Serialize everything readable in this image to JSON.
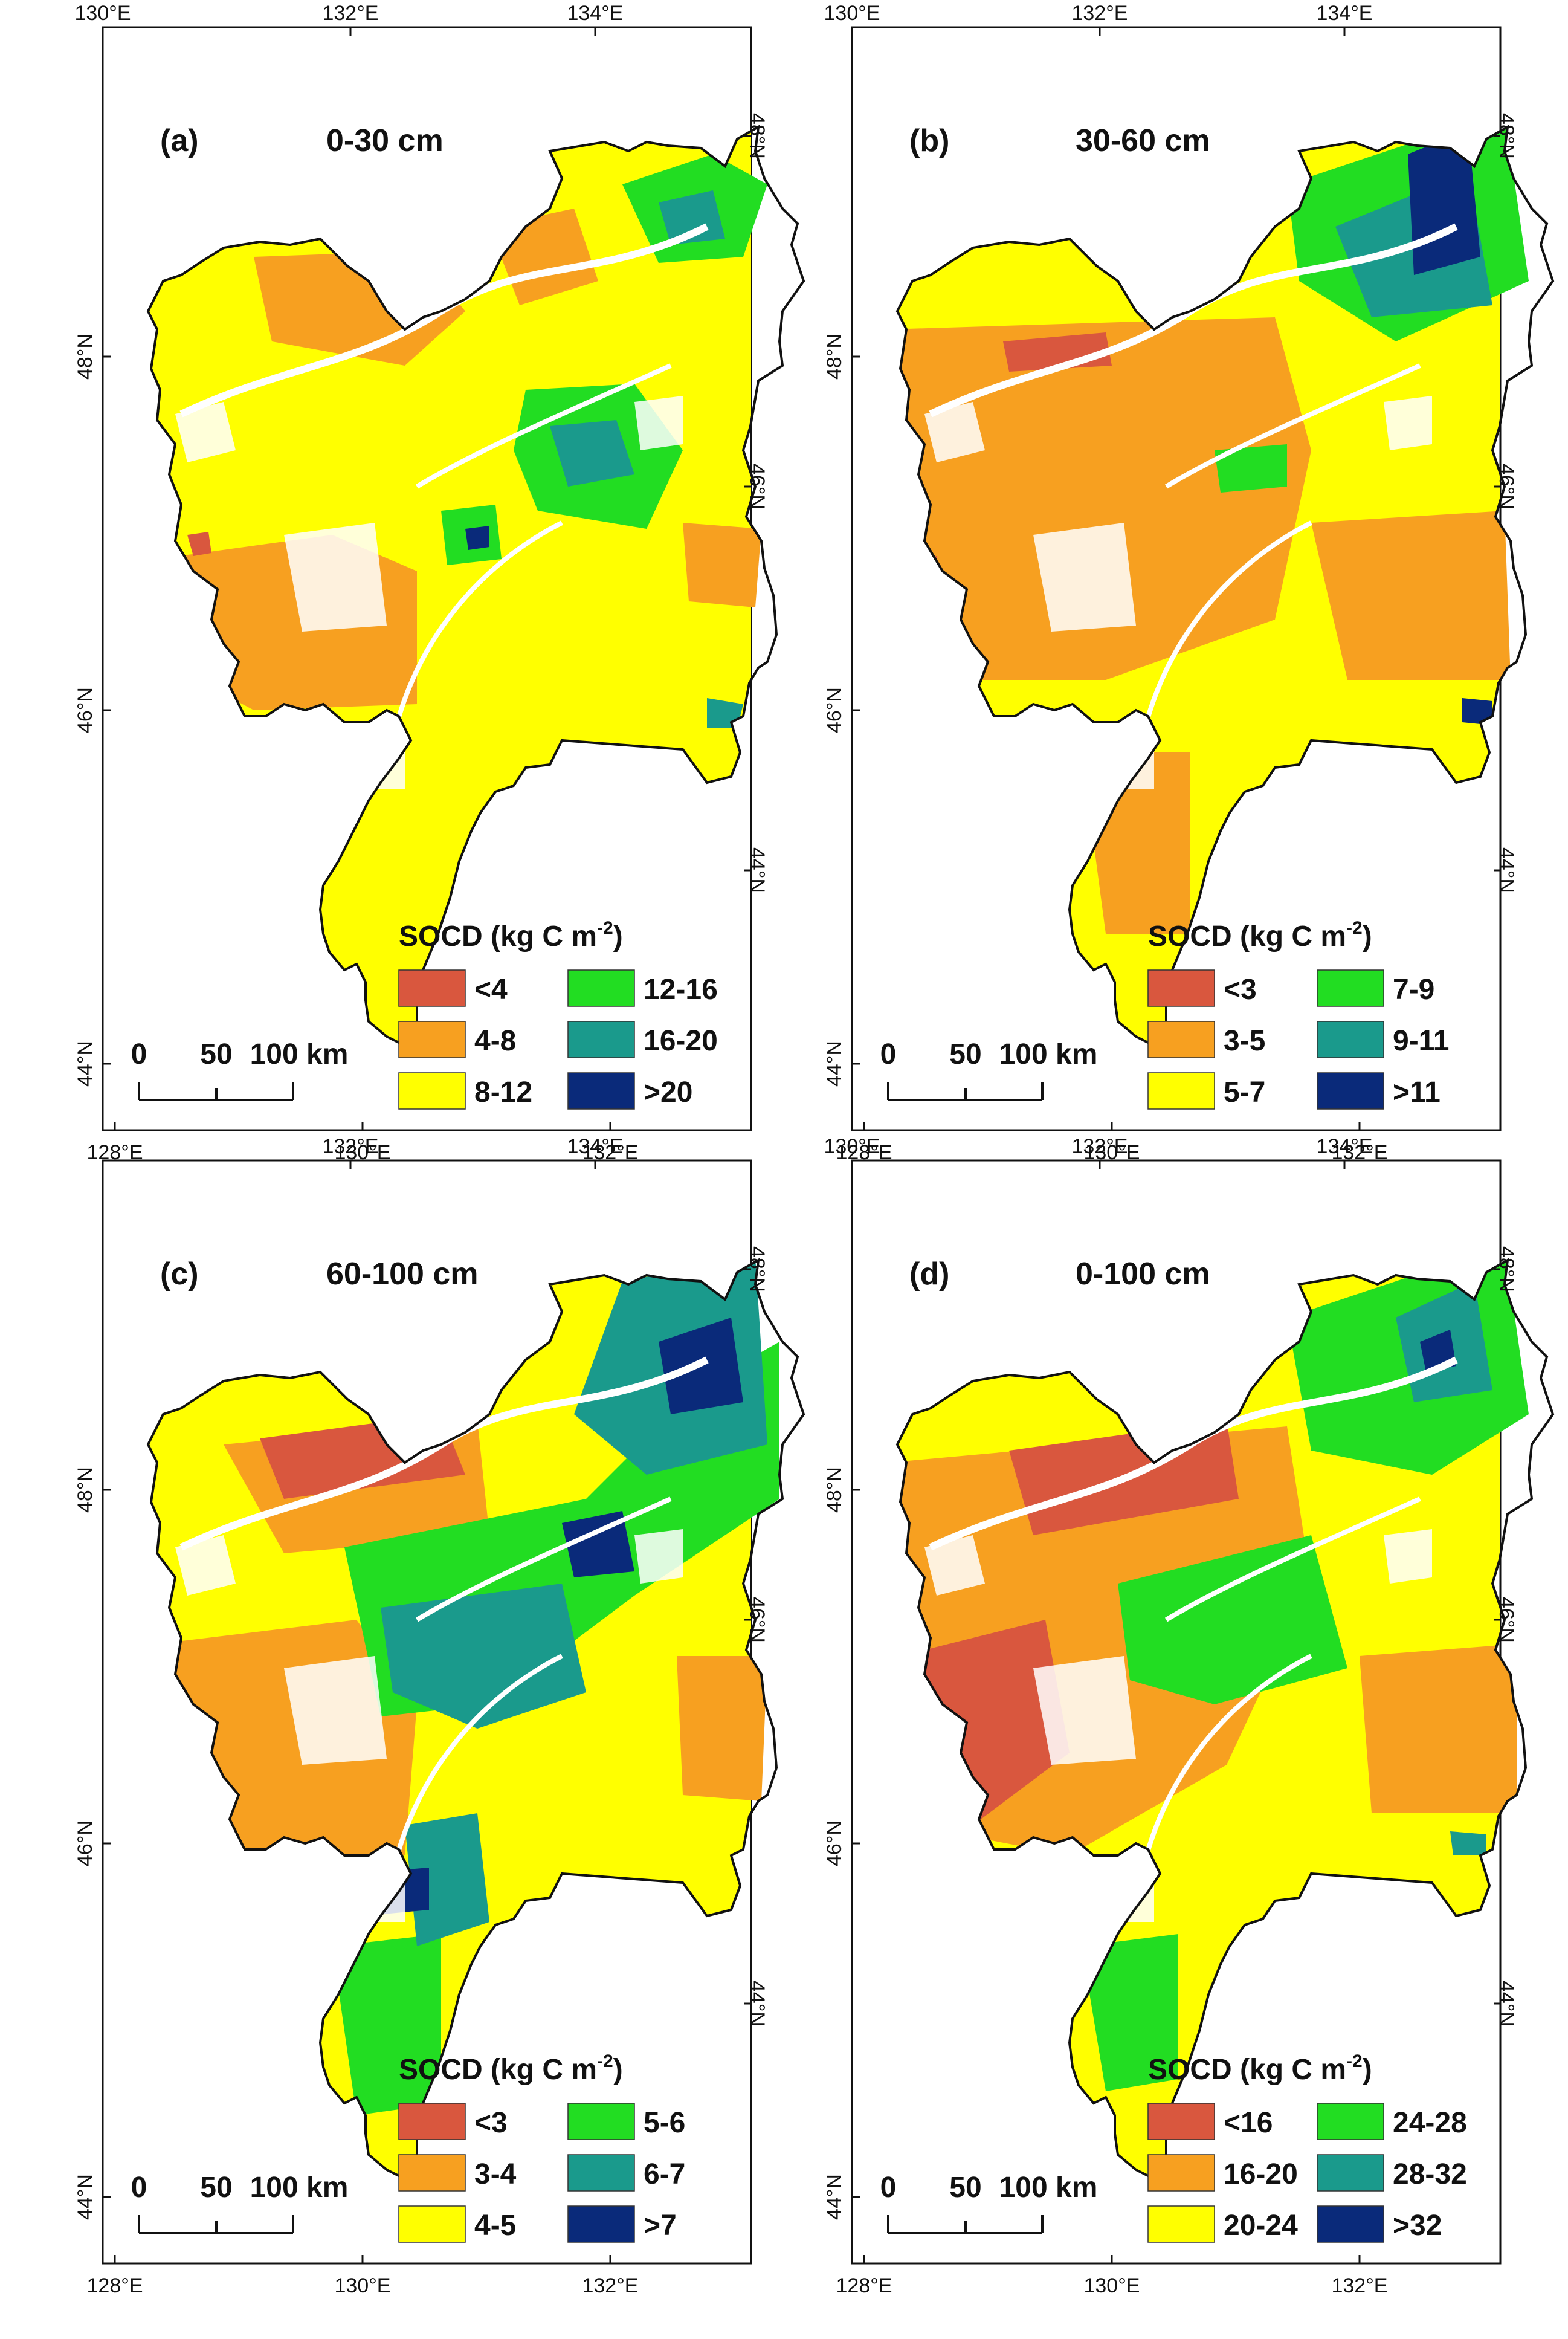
{
  "figure": {
    "legend_title_main": "SOCD (kg C m",
    "legend_title_exp": "-2",
    "legend_title_end": ")",
    "scale_bar": {
      "ticks": [
        "0",
        "50"
      ],
      "end_label": "100 km"
    },
    "panels": [
      {
        "id": "a",
        "tag": "(a)",
        "depth": "0-30 cm",
        "top_ticks": [
          "130°E",
          "132°E",
          "134°E"
        ],
        "bottom_ticks": [
          "128°E",
          "130°E",
          "132°E"
        ],
        "left_ticks": [
          "48°N",
          "46°N",
          "44°N"
        ],
        "right_ticks": [
          "48°N",
          "46°N",
          "44°N"
        ],
        "legend": [
          {
            "label": "<4",
            "color": "#d9573e"
          },
          {
            "label": "4-8",
            "color": "#f7a020"
          },
          {
            "label": "8-12",
            "color": "#ffff00"
          },
          {
            "label": "12-16",
            "color": "#22dd22"
          },
          {
            "label": "16-20",
            "color": "#1a9a8c"
          },
          {
            "label": ">20",
            "color": "#0a2a7a"
          }
        ]
      },
      {
        "id": "b",
        "tag": "(b)",
        "depth": "30-60 cm",
        "top_ticks": [
          "130°E",
          "132°E",
          "134°E"
        ],
        "bottom_ticks": [
          "128°E",
          "130°E",
          "132°E"
        ],
        "left_ticks": [
          "48°N",
          "46°N",
          "44°N"
        ],
        "right_ticks": [
          "48°N",
          "46°N",
          "44°N"
        ],
        "legend": [
          {
            "label": "<3",
            "color": "#d9573e"
          },
          {
            "label": "3-5",
            "color": "#f7a020"
          },
          {
            "label": "5-7",
            "color": "#ffff00"
          },
          {
            "label": "7-9",
            "color": "#22dd22"
          },
          {
            "label": "9-11",
            "color": "#1a9a8c"
          },
          {
            "label": ">11",
            "color": "#0a2a7a"
          }
        ]
      },
      {
        "id": "c",
        "tag": "(c)",
        "depth": "60-100 cm",
        "top_ticks": [
          "132°E",
          "134°E"
        ],
        "bottom_ticks": [
          "128°E",
          "130°E",
          "132°E"
        ],
        "left_ticks": [
          "48°N",
          "46°N",
          "44°N"
        ],
        "right_ticks": [
          "48°N",
          "46°N",
          "44°N"
        ],
        "legend": [
          {
            "label": "<3",
            "color": "#d9573e"
          },
          {
            "label": "3-4",
            "color": "#f7a020"
          },
          {
            "label": "4-5",
            "color": "#ffff00"
          },
          {
            "label": "5-6",
            "color": "#22dd22"
          },
          {
            "label": "6-7",
            "color": "#1a9a8c"
          },
          {
            "label": ">7",
            "color": "#0a2a7a"
          }
        ]
      },
      {
        "id": "d",
        "tag": "(d)",
        "depth": "0-100 cm",
        "top_ticks": [
          "130°E",
          "132°E",
          "134°E"
        ],
        "bottom_ticks": [
          "128°E",
          "130°E",
          "132°E"
        ],
        "left_ticks": [
          "48°N",
          "46°N",
          "44°N"
        ],
        "right_ticks": [
          "48°N",
          "46°N",
          "44°N"
        ],
        "legend": [
          {
            "label": "<16",
            "color": "#d9573e"
          },
          {
            "label": "16-20",
            "color": "#f7a020"
          },
          {
            "label": "20-24",
            "color": "#ffff00"
          },
          {
            "label": "24-28",
            "color": "#22dd22"
          },
          {
            "label": "28-32",
            "color": "#1a9a8c"
          },
          {
            "label": ">32",
            "color": "#0a2a7a"
          }
        ]
      }
    ]
  }
}
